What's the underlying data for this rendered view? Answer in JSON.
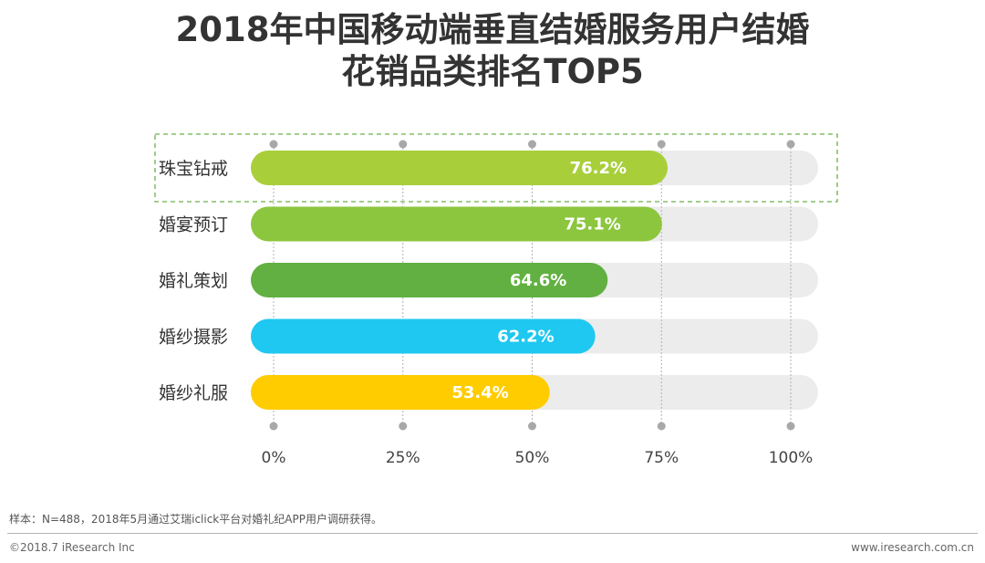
{
  "chart_data": {
    "type": "bar",
    "orientation": "horizontal",
    "title_lines": [
      "2018年中国移动端垂直结婚服务用户结婚",
      "花销品类排名TOP5"
    ],
    "categories": [
      "珠宝钻戒",
      "婚宴预订",
      "婚礼策划",
      "婚纱摄影",
      "婚纱礼服"
    ],
    "values": [
      76.2,
      75.1,
      64.6,
      62.2,
      53.4
    ],
    "value_labels": [
      "76.2%",
      "75.1%",
      "64.6%",
      "62.2%",
      "53.4%"
    ],
    "colors": [
      "#a8cf3a",
      "#8cc63e",
      "#62b041",
      "#1fc8f0",
      "#ffcc00"
    ],
    "track_color": "#ececec",
    "highlight_color": "#6ab04c",
    "xlim": [
      0,
      100
    ],
    "xticks": [
      0,
      25,
      50,
      75,
      100
    ],
    "xtick_labels": [
      "0%",
      "25%",
      "50%",
      "75%",
      "100%"
    ],
    "highlight_index": 0,
    "xlabel": "",
    "ylabel": ""
  },
  "footer": {
    "note": "样本：N=488，2018年5月通过艾瑞iclick平台对婚礼纪APP用户调研获得。",
    "copyright": "©2018.7 iResearch Inc",
    "website": "www.iresearch.com.cn"
  }
}
